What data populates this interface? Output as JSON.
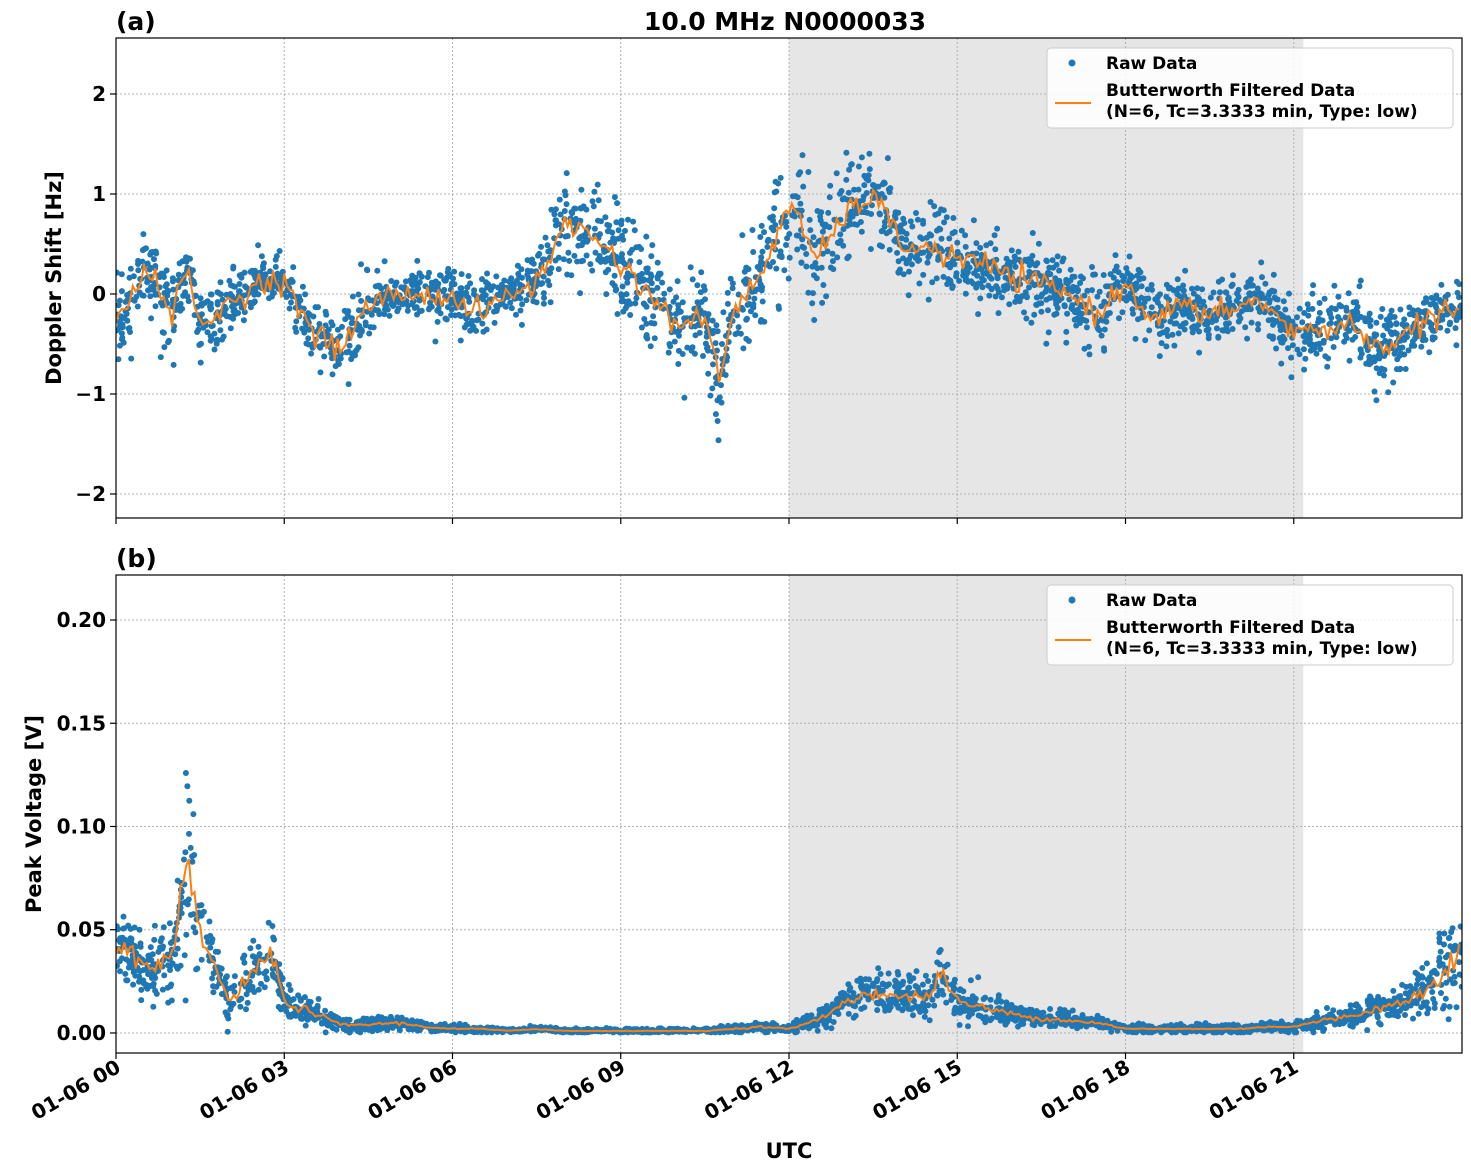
{
  "title": "10.0 MHz N0000033",
  "x_label": "UTC",
  "x_tick_labels": [
    "01-06 00",
    "01-06 03",
    "01-06 06",
    "01-06 09",
    "01-06 12",
    "01-06 15",
    "01-06 18",
    "01-06 21"
  ],
  "colors": {
    "raw": "#1f77b4",
    "filtered": "#ff7f0e",
    "shade": "#e6e6e6"
  },
  "chart_data": [
    {
      "type": "scatter",
      "panel_label": "(a)",
      "ylabel": "Doppler Shift [Hz]",
      "xlim_hours": [
        0,
        24
      ],
      "ylim": [
        -2.24,
        2.56
      ],
      "y_ticks": [
        2,
        1,
        0,
        -1,
        -2
      ],
      "y_tick_labels": [
        "2",
        "1",
        "0",
        "−1",
        "−2"
      ],
      "grid": true,
      "shaded_interval_hours": [
        12.0,
        21.17
      ],
      "legend": {
        "position": "top-right",
        "raw": "Raw Data",
        "filtered": "Butterworth Filtered Data",
        "filtered_params": "(N=6, Tc=3.3333 min, Type: low)"
      },
      "x_hours": [
        0,
        0.5,
        1,
        1.25,
        1.5,
        2,
        2.5,
        3,
        3.5,
        4,
        4.5,
        5,
        5.5,
        6,
        6.5,
        7,
        7.5,
        8,
        8.5,
        9,
        9.5,
        10,
        10.5,
        10.75,
        11,
        11.5,
        12,
        12.5,
        13,
        13.5,
        14,
        14.5,
        15,
        15.5,
        16,
        16.5,
        17,
        17.5,
        18,
        18.5,
        19,
        19.5,
        20,
        20.5,
        21,
        21.5,
        22,
        22.5,
        23,
        23.5,
        24
      ],
      "series": [
        {
          "name": "Butterworth Filtered Data",
          "values": [
            -0.35,
            0.3,
            -0.2,
            0.25,
            -0.35,
            -0.1,
            0.1,
            0.15,
            -0.4,
            -0.55,
            -0.1,
            0.0,
            0.0,
            -0.05,
            -0.2,
            0.0,
            0.1,
            0.7,
            0.6,
            0.3,
            0.0,
            -0.3,
            -0.25,
            -0.85,
            -0.2,
            0.2,
            0.9,
            0.35,
            0.8,
            1.0,
            0.5,
            0.45,
            0.35,
            0.3,
            0.15,
            0.1,
            0.0,
            -0.2,
            0.1,
            -0.25,
            -0.1,
            -0.25,
            -0.1,
            -0.1,
            -0.4,
            -0.35,
            -0.3,
            -0.55,
            -0.4,
            -0.2,
            -0.2
          ]
        },
        {
          "name": "Raw Data",
          "spread": [
            0.4,
            0.35,
            0.4,
            0.35,
            0.4,
            0.3,
            0.25,
            0.25,
            0.35,
            0.4,
            0.3,
            0.25,
            0.25,
            0.3,
            0.3,
            0.3,
            0.3,
            0.5,
            0.55,
            0.5,
            0.5,
            0.5,
            0.5,
            0.6,
            0.5,
            0.5,
            0.7,
            0.5,
            0.5,
            0.45,
            0.35,
            0.35,
            0.35,
            0.35,
            0.35,
            0.35,
            0.35,
            0.4,
            0.35,
            0.35,
            0.3,
            0.3,
            0.3,
            0.3,
            0.35,
            0.35,
            0.35,
            0.4,
            0.35,
            0.3,
            0.3
          ]
        }
      ]
    },
    {
      "type": "scatter",
      "panel_label": "(b)",
      "ylabel": "Peak Voltage [V]",
      "xlim_hours": [
        0,
        24
      ],
      "ylim": [
        -0.0097,
        0.2218
      ],
      "y_ticks": [
        0.2,
        0.15,
        0.1,
        0.05,
        0.0
      ],
      "y_tick_labels": [
        "0.20",
        "0.15",
        "0.10",
        "0.05",
        "0.00"
      ],
      "grid": true,
      "shaded_interval_hours": [
        12.0,
        21.17
      ],
      "legend": {
        "position": "top-right",
        "raw": "Raw Data",
        "filtered": "Butterworth Filtered Data",
        "filtered_params": "(N=6, Tc=3.3333 min, Type: low)"
      },
      "x_hours": [
        0,
        0.5,
        1,
        1.25,
        1.5,
        2,
        2.5,
        2.75,
        3,
        3.5,
        4,
        4.5,
        5,
        5.5,
        6,
        6.5,
        7,
        7.5,
        8,
        8.5,
        9,
        9.5,
        10,
        10.5,
        11,
        11.5,
        12,
        12.5,
        13,
        13.5,
        14,
        14.5,
        14.75,
        15,
        15.5,
        16,
        16.5,
        17,
        17.5,
        18,
        18.5,
        19,
        19.5,
        20,
        20.5,
        21,
        21.5,
        22,
        22.5,
        23,
        23.5,
        24
      ],
      "series": [
        {
          "name": "Butterworth Filtered Data",
          "values": [
            0.045,
            0.03,
            0.035,
            0.08,
            0.05,
            0.015,
            0.03,
            0.04,
            0.015,
            0.01,
            0.004,
            0.004,
            0.005,
            0.003,
            0.002,
            0.002,
            0.001,
            0.002,
            0.001,
            0.001,
            0.001,
            0.001,
            0.001,
            0.001,
            0.002,
            0.003,
            0.002,
            0.006,
            0.015,
            0.02,
            0.017,
            0.018,
            0.03,
            0.015,
            0.012,
            0.009,
            0.007,
            0.006,
            0.005,
            0.002,
            0.002,
            0.002,
            0.002,
            0.002,
            0.003,
            0.003,
            0.006,
            0.008,
            0.012,
            0.015,
            0.025,
            0.04
          ]
        },
        {
          "name": "Raw Data",
          "spread": [
            0.02,
            0.015,
            0.02,
            0.05,
            0.025,
            0.012,
            0.015,
            0.02,
            0.01,
            0.006,
            0.004,
            0.004,
            0.004,
            0.002,
            0.002,
            0.002,
            0.001,
            0.001,
            0.001,
            0.001,
            0.001,
            0.001,
            0.001,
            0.001,
            0.002,
            0.002,
            0.002,
            0.004,
            0.008,
            0.01,
            0.01,
            0.01,
            0.015,
            0.009,
            0.007,
            0.005,
            0.004,
            0.004,
            0.003,
            0.002,
            0.002,
            0.002,
            0.002,
            0.002,
            0.002,
            0.003,
            0.004,
            0.005,
            0.007,
            0.008,
            0.015,
            0.03
          ]
        }
      ]
    }
  ]
}
